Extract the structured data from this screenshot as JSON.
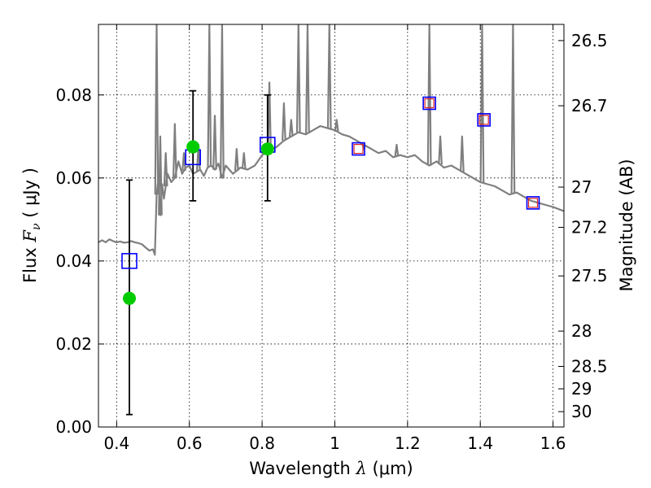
{
  "chart_data": {
    "type": "line",
    "xlabel_prefix": "Wavelength",
    "xlabel_symbol": "λ",
    "xlabel_unit": "(μm)",
    "ylabel_prefix": "Flux",
    "ylabel_symbol": "F",
    "ylabel_subscript": "ν",
    "ylabel_unit": "( μJy )",
    "y2label": "Magnitude (AB)",
    "xlim": [
      0.35,
      1.63
    ],
    "ylim": [
      0.0,
      0.097
    ],
    "grid": true,
    "x_ticks": [
      0.4,
      0.6,
      0.8,
      1.0,
      1.2,
      1.4,
      1.6
    ],
    "x_tick_labels": [
      "0.4",
      "0.6",
      "0.8",
      "1",
      "1.2",
      "1.4",
      "1.6"
    ],
    "y_ticks": [
      0.0,
      0.02,
      0.04,
      0.06,
      0.08
    ],
    "y_tick_labels": [
      "0.00",
      "0.02",
      "0.04",
      "0.06",
      "0.08"
    ],
    "y2_ticks": [
      {
        "flux": 0.0931,
        "label": "26.5"
      },
      {
        "flux": 0.0774,
        "label": "26.7"
      },
      {
        "flux": 0.0578,
        "label": "27"
      },
      {
        "flux": 0.0481,
        "label": "27.2"
      },
      {
        "flux": 0.0364,
        "label": "27.5"
      },
      {
        "flux": 0.0231,
        "label": "28"
      },
      {
        "flux": 0.0146,
        "label": "28.5"
      },
      {
        "flux": 0.0092,
        "label": "29"
      },
      {
        "flux": 0.0037,
        "label": "30"
      }
    ],
    "spectrum": {
      "color": "#7f7f7f",
      "x": [
        0.35,
        0.36,
        0.37,
        0.38,
        0.39,
        0.4,
        0.41,
        0.42,
        0.43,
        0.44,
        0.45,
        0.46,
        0.47,
        0.48,
        0.49,
        0.5,
        0.505,
        0.51,
        0.515,
        0.52,
        0.525,
        0.53,
        0.54,
        0.55,
        0.56,
        0.57,
        0.58,
        0.59,
        0.6,
        0.61,
        0.62,
        0.63,
        0.64,
        0.65,
        0.66,
        0.67,
        0.68,
        0.69,
        0.7,
        0.72,
        0.74,
        0.76,
        0.78,
        0.8,
        0.82,
        0.84,
        0.86,
        0.88,
        0.9,
        0.92,
        0.94,
        0.96,
        0.98,
        1.0,
        1.02,
        1.04,
        1.06,
        1.08,
        1.1,
        1.12,
        1.14,
        1.16,
        1.18,
        1.2,
        1.22,
        1.24,
        1.26,
        1.28,
        1.3,
        1.32,
        1.34,
        1.36,
        1.38,
        1.4,
        1.42,
        1.44,
        1.46,
        1.48,
        1.5,
        1.52,
        1.54,
        1.56,
        1.58,
        1.6,
        1.63
      ],
      "y": [
        0.0445,
        0.045,
        0.0445,
        0.0452,
        0.0448,
        0.0445,
        0.0447,
        0.0444,
        0.0445,
        0.0448,
        0.0445,
        0.0443,
        0.044,
        0.0432,
        0.0425,
        0.0428,
        0.0415,
        0.056,
        0.06,
        0.051,
        0.0585,
        0.055,
        0.061,
        0.059,
        0.06,
        0.064,
        0.061,
        0.0625,
        0.063,
        0.061,
        0.0615,
        0.062,
        0.0605,
        0.0625,
        0.063,
        0.062,
        0.0635,
        0.06,
        0.063,
        0.061,
        0.0625,
        0.062,
        0.063,
        0.0655,
        0.0665,
        0.0675,
        0.069,
        0.07,
        0.071,
        0.0705,
        0.0715,
        0.0725,
        0.072,
        0.0715,
        0.0705,
        0.07,
        0.069,
        0.068,
        0.067,
        0.066,
        0.0665,
        0.065,
        0.0655,
        0.065,
        0.0655,
        0.064,
        0.063,
        0.064,
        0.0625,
        0.063,
        0.062,
        0.061,
        0.06,
        0.059,
        0.0585,
        0.058,
        0.057,
        0.056,
        0.0565,
        0.0555,
        0.0545,
        0.054,
        0.0535,
        0.053,
        0.052
      ]
    },
    "emission_lines": [
      {
        "x": 0.51,
        "peak": 0.097
      },
      {
        "x": 0.52,
        "peak": 0.07
      },
      {
        "x": 0.535,
        "peak": 0.066
      },
      {
        "x": 0.56,
        "peak": 0.073
      },
      {
        "x": 0.585,
        "peak": 0.066
      },
      {
        "x": 0.625,
        "peak": 0.068
      },
      {
        "x": 0.655,
        "peak": 0.097
      },
      {
        "x": 0.67,
        "peak": 0.075
      },
      {
        "x": 0.69,
        "peak": 0.097
      },
      {
        "x": 0.73,
        "peak": 0.067
      },
      {
        "x": 0.75,
        "peak": 0.066
      },
      {
        "x": 0.82,
        "peak": 0.083
      },
      {
        "x": 0.86,
        "peak": 0.078
      },
      {
        "x": 0.88,
        "peak": 0.074
      },
      {
        "x": 0.9,
        "peak": 0.097
      },
      {
        "x": 0.925,
        "peak": 0.097
      },
      {
        "x": 0.985,
        "peak": 0.097
      },
      {
        "x": 1.005,
        "peak": 0.074
      },
      {
        "x": 1.08,
        "peak": 0.067
      },
      {
        "x": 1.17,
        "peak": 0.068
      },
      {
        "x": 1.26,
        "peak": 0.097
      },
      {
        "x": 1.29,
        "peak": 0.07
      },
      {
        "x": 1.35,
        "peak": 0.07
      },
      {
        "x": 1.405,
        "peak": 0.097
      },
      {
        "x": 1.49,
        "peak": 0.097
      }
    ],
    "model_flux": {
      "marker": "square",
      "color": "#0000ff",
      "x": [
        0.435,
        0.61,
        0.815,
        1.065,
        1.26,
        1.41,
        1.545
      ],
      "y": [
        0.04,
        0.065,
        0.068,
        0.067,
        0.078,
        0.074,
        0.054
      ]
    },
    "inner_squares": {
      "marker": "square",
      "color": "#dd2222",
      "x": [
        1.065,
        1.26,
        1.41,
        1.545
      ],
      "y": [
        0.067,
        0.078,
        0.074,
        0.054
      ]
    },
    "observed": {
      "marker": "circle",
      "color": "#00cc00",
      "x": [
        0.435,
        0.61,
        0.815
      ],
      "y": [
        0.031,
        0.0675,
        0.067
      ],
      "yerr_low": [
        0.003,
        0.0545,
        0.0545
      ],
      "yerr_high": [
        0.0595,
        0.081,
        0.08
      ]
    }
  }
}
